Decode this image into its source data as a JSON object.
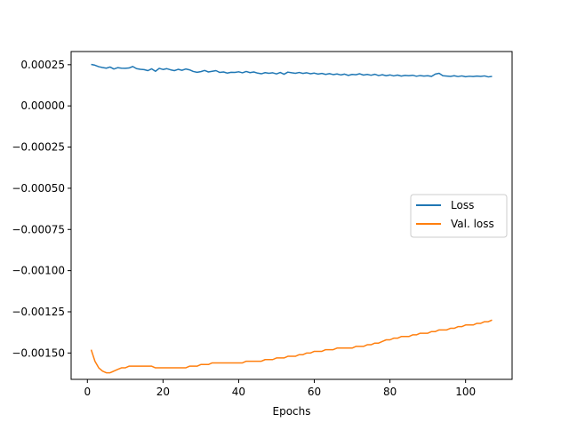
{
  "chart_data": {
    "type": "line",
    "title": "",
    "xlabel": "Epochs",
    "ylabel": "",
    "xlim": [
      -4.3,
      112.3
    ],
    "ylim": [
      -0.00166,
      0.00033
    ],
    "x_ticks": [
      0,
      20,
      40,
      60,
      80,
      100
    ],
    "x_tick_labels": [
      "0",
      "20",
      "40",
      "60",
      "80",
      "100"
    ],
    "y_ticks": [
      0.00025,
      0.0,
      -0.00025,
      -0.0005,
      -0.00075,
      -0.001,
      -0.00125,
      -0.0015
    ],
    "y_tick_labels": [
      "0.00025",
      "0.00000",
      "−0.00025",
      "−0.00050",
      "−0.00075",
      "−0.00100",
      "−0.00125",
      "−0.00150"
    ],
    "grid": false,
    "legend_position": "center-right",
    "series": [
      {
        "name": "Loss",
        "color": "#1f77b4",
        "x_start": 1,
        "x_end": 107,
        "values": [
          0.000252,
          0.000247,
          0.000238,
          0.000233,
          0.000229,
          0.000236,
          0.000224,
          0.000232,
          0.000229,
          0.000228,
          0.00023,
          0.000239,
          0.000226,
          0.000222,
          0.00022,
          0.000214,
          0.000225,
          0.00021,
          0.000228,
          0.000221,
          0.000226,
          0.000219,
          0.000214,
          0.000222,
          0.000216,
          0.000224,
          0.000219,
          0.000209,
          0.000204,
          0.000208,
          0.000215,
          0.000206,
          0.00021,
          0.000214,
          0.000203,
          0.000206,
          0.000199,
          0.000204,
          0.000203,
          0.000207,
          0.000201,
          0.000209,
          0.000202,
          0.000206,
          0.000199,
          0.000195,
          0.000202,
          0.000198,
          0.000201,
          0.000194,
          0.000203,
          0.000192,
          0.000205,
          0.000201,
          0.000198,
          0.000203,
          0.000197,
          0.000201,
          0.000195,
          0.000199,
          0.000193,
          0.000197,
          0.000191,
          0.000196,
          0.00019,
          0.000194,
          0.000188,
          0.000193,
          0.000185,
          0.000191,
          0.000189,
          0.000195,
          0.000187,
          0.000191,
          0.000186,
          0.000192,
          0.000184,
          0.000189,
          0.000183,
          0.000188,
          0.000182,
          0.000187,
          0.000181,
          0.000185,
          0.000183,
          0.000186,
          0.00018,
          0.000184,
          0.000181,
          0.000183,
          0.000179,
          0.000193,
          0.000198,
          0.000183,
          0.000181,
          0.000179,
          0.000183,
          0.000178,
          0.000182,
          0.000177,
          0.00018,
          0.000178,
          0.000181,
          0.000179,
          0.000182,
          0.000176,
          0.000179
        ]
      },
      {
        "name": "Val. loss",
        "color": "#ff7f0e",
        "x_start": 1,
        "x_end": 107,
        "values": [
          -0.00148,
          -0.00155,
          -0.00159,
          -0.00161,
          -0.00162,
          -0.00162,
          -0.00161,
          -0.0016,
          -0.00159,
          -0.00159,
          -0.00158,
          -0.00158,
          -0.00158,
          -0.00158,
          -0.00158,
          -0.00158,
          -0.00158,
          -0.00159,
          -0.00159,
          -0.00159,
          -0.00159,
          -0.00159,
          -0.00159,
          -0.00159,
          -0.00159,
          -0.00159,
          -0.00158,
          -0.00158,
          -0.00158,
          -0.00157,
          -0.00157,
          -0.00157,
          -0.00156,
          -0.00156,
          -0.00156,
          -0.00156,
          -0.00156,
          -0.00156,
          -0.00156,
          -0.00156,
          -0.00156,
          -0.00155,
          -0.00155,
          -0.00155,
          -0.00155,
          -0.00155,
          -0.00154,
          -0.00154,
          -0.00154,
          -0.00153,
          -0.00153,
          -0.00153,
          -0.00152,
          -0.00152,
          -0.00152,
          -0.00151,
          -0.00151,
          -0.0015,
          -0.0015,
          -0.00149,
          -0.00149,
          -0.00149,
          -0.00148,
          -0.00148,
          -0.00148,
          -0.00147,
          -0.00147,
          -0.00147,
          -0.00147,
          -0.00147,
          -0.00146,
          -0.00146,
          -0.00146,
          -0.00145,
          -0.00145,
          -0.00144,
          -0.00144,
          -0.00143,
          -0.00142,
          -0.00142,
          -0.00141,
          -0.00141,
          -0.0014,
          -0.0014,
          -0.0014,
          -0.00139,
          -0.00139,
          -0.00138,
          -0.00138,
          -0.00138,
          -0.00137,
          -0.00137,
          -0.00136,
          -0.00136,
          -0.00136,
          -0.00135,
          -0.00135,
          -0.00134,
          -0.00134,
          -0.00133,
          -0.00133,
          -0.00133,
          -0.00132,
          -0.00132,
          -0.00131,
          -0.00131,
          -0.0013
        ]
      }
    ]
  }
}
